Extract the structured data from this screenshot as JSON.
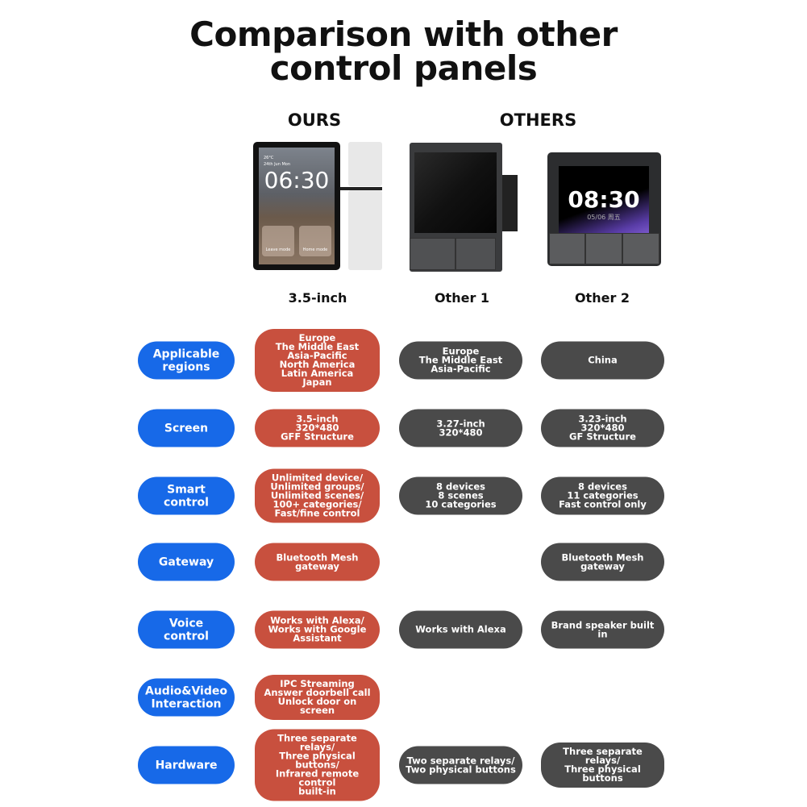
{
  "title": "Comparison with other\ncontrol panels",
  "headers": {
    "ours": "OURS",
    "others": "OTHERS"
  },
  "products": [
    {
      "name": "3.5-inch",
      "screen_time": "06:30",
      "screen_temp": "26°C",
      "screen_date": "24th Jun  Mon",
      "modes": [
        "Leave mode",
        "Home mode"
      ]
    },
    {
      "name": "Other 1"
    },
    {
      "name": "Other 2",
      "screen_time": "08:30",
      "screen_date": "05/06 周五"
    }
  ],
  "colors": {
    "label": "#1769e8",
    "ours": "#c8503e",
    "others": "#4a4a4a"
  },
  "rows": [
    {
      "label": "Applicable\nregions",
      "ours": "Europe\nThe Middle East\nAsia-Pacific\nNorth America\nLatin America\nJapan",
      "other1": "Europe\nThe Middle East\nAsia-Pacific",
      "other2": "China"
    },
    {
      "label": "Screen",
      "ours": "3.5-inch\n320*480\nGFF Structure",
      "other1": "3.27-inch\n320*480",
      "other2": "3.23-inch\n320*480\nGF Structure"
    },
    {
      "label": "Smart\ncontrol",
      "ours": "Unlimited device/\nUnlimited groups/\nUnlimited scenes/\n100+ categories/\nFast/fine control",
      "other1": "8 devices\n8 scenes\n10 categories",
      "other2": "8 devices\n11 categories\nFast control only"
    },
    {
      "label": "Gateway",
      "ours": "Bluetooth Mesh\ngateway",
      "other1": null,
      "other2": "Bluetooth Mesh\ngateway"
    },
    {
      "label": "Voice\ncontrol",
      "ours": "Works with Alexa/\nWorks with Google\nAssistant",
      "other1": "Works with Alexa",
      "other2": "Brand speaker built in"
    },
    {
      "label": "Audio&Video\nInteraction",
      "ours": "IPC Streaming\nAnswer doorbell call\nUnlock door on screen",
      "other1": null,
      "other2": null
    },
    {
      "label": "Hardware",
      "ours": "Three separate relays/\nThree physical buttons/\nInfrared remote control\nbuilt-in",
      "other1": "Two separate relays/\nTwo physical buttons",
      "other2": "Three separate relays/\nThree physical buttons"
    }
  ]
}
